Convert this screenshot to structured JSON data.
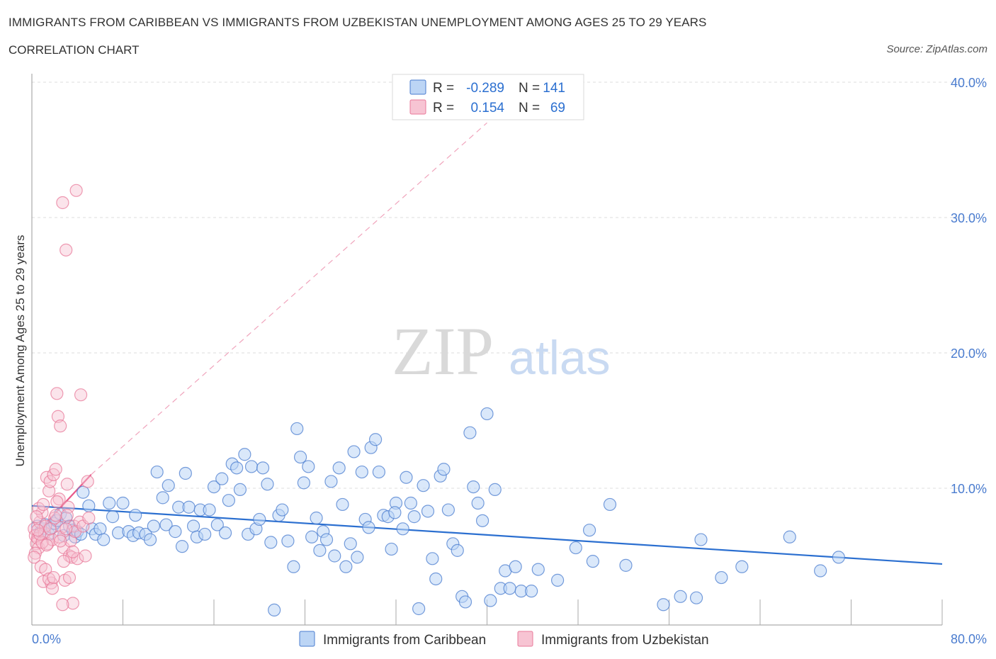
{
  "header": {
    "title": "IMMIGRANTS FROM CARIBBEAN VS IMMIGRANTS FROM UZBEKISTAN UNEMPLOYMENT AMONG AGES 25 TO 29 YEARS",
    "subtitle": "CORRELATION CHART",
    "source": "Source: ZipAtlas.com"
  },
  "watermark": {
    "zip": "ZIP",
    "atlas": "atlas"
  },
  "legend": {
    "rows": [
      {
        "r_label": "R =",
        "r_value": "-0.289",
        "n_label": "N =",
        "n_value": "141"
      },
      {
        "r_label": "R =",
        "r_value": "0.154",
        "n_label": "N =",
        "n_value": "69"
      }
    ]
  },
  "bottom_legend": [
    "Immigrants from Caribbean",
    "Immigrants from Uzbekistan"
  ],
  "colors": {
    "blue": "#4a7ccf",
    "blue_line": "#2b6fd0",
    "blue_fill": "#bcd5f5",
    "pink": "#e8799a",
    "pink_line": "#e85a8a",
    "pink_fill": "#f7c4d3",
    "grid": "#dddddd"
  },
  "chart_data": {
    "type": "scatter",
    "title": "IMMIGRANTS FROM CARIBBEAN VS IMMIGRANTS FROM UZBEKISTAN UNEMPLOYMENT AMONG AGES 25 TO 29 YEARS",
    "xlabel": "",
    "ylabel": "Unemployment Among Ages 25 to 29 years",
    "xlim": [
      0,
      80
    ],
    "ylim": [
      0,
      40
    ],
    "x_tick_labels": [
      "0.0%",
      "80.0%"
    ],
    "y_ticks": [
      10,
      20,
      30,
      40
    ],
    "y_tick_labels": [
      "10.0%",
      "20.0%",
      "30.0%",
      "40.0%"
    ],
    "series": [
      {
        "name": "Immigrants from Caribbean",
        "color": "#4a7ccf",
        "R": -0.289,
        "N": 141,
        "trend": {
          "x": [
            0,
            80
          ],
          "y": [
            8.7,
            4.4
          ]
        },
        "points": [
          [
            0.5,
            7.2
          ],
          [
            0.8,
            6.8
          ],
          [
            1.0,
            7.0
          ],
          [
            1.2,
            7.3
          ],
          [
            1.5,
            6.6
          ],
          [
            1.8,
            7.1
          ],
          [
            2.0,
            7.4
          ],
          [
            2.2,
            7.6
          ],
          [
            2.5,
            8.1
          ],
          [
            2.8,
            6.5
          ],
          [
            3.0,
            7.8
          ],
          [
            3.3,
            7.2
          ],
          [
            3.6,
            6.9
          ],
          [
            3.8,
            6.4
          ],
          [
            4.0,
            6.8
          ],
          [
            4.3,
            6.6
          ],
          [
            4.5,
            9.7
          ],
          [
            5.0,
            8.7
          ],
          [
            5.3,
            7.0
          ],
          [
            5.6,
            6.6
          ],
          [
            6.0,
            7.0
          ],
          [
            6.3,
            6.2
          ],
          [
            6.8,
            8.9
          ],
          [
            7.1,
            7.9
          ],
          [
            7.6,
            6.7
          ],
          [
            8.0,
            8.9
          ],
          [
            8.5,
            6.8
          ],
          [
            8.9,
            6.5
          ],
          [
            9.1,
            8.0
          ],
          [
            9.4,
            6.7
          ],
          [
            10.0,
            6.6
          ],
          [
            10.4,
            6.2
          ],
          [
            10.7,
            7.2
          ],
          [
            11.0,
            11.2
          ],
          [
            11.5,
            9.3
          ],
          [
            11.8,
            7.3
          ],
          [
            12.0,
            10.2
          ],
          [
            12.6,
            6.8
          ],
          [
            12.9,
            8.6
          ],
          [
            13.2,
            5.7
          ],
          [
            13.5,
            11.1
          ],
          [
            13.8,
            8.6
          ],
          [
            14.2,
            7.2
          ],
          [
            14.5,
            6.4
          ],
          [
            14.8,
            8.4
          ],
          [
            15.2,
            6.6
          ],
          [
            15.6,
            8.4
          ],
          [
            16.0,
            10.1
          ],
          [
            16.3,
            7.3
          ],
          [
            16.7,
            10.7
          ],
          [
            17.0,
            6.7
          ],
          [
            17.3,
            9.1
          ],
          [
            17.6,
            11.8
          ],
          [
            18.0,
            11.5
          ],
          [
            18.3,
            9.9
          ],
          [
            18.7,
            12.5
          ],
          [
            19.0,
            6.6
          ],
          [
            19.3,
            11.6
          ],
          [
            19.7,
            7.0
          ],
          [
            20.0,
            7.7
          ],
          [
            20.3,
            11.5
          ],
          [
            20.7,
            10.3
          ],
          [
            21.0,
            6.0
          ],
          [
            21.3,
            1.0
          ],
          [
            21.7,
            8.0
          ],
          [
            22.0,
            8.4
          ],
          [
            22.5,
            6.1
          ],
          [
            23.0,
            4.2
          ],
          [
            23.3,
            14.4
          ],
          [
            23.6,
            12.3
          ],
          [
            23.9,
            10.4
          ],
          [
            24.3,
            11.6
          ],
          [
            24.6,
            6.4
          ],
          [
            25.0,
            7.8
          ],
          [
            25.3,
            5.4
          ],
          [
            25.6,
            6.8
          ],
          [
            25.9,
            6.2
          ],
          [
            26.3,
            10.5
          ],
          [
            26.6,
            5.0
          ],
          [
            27.0,
            11.5
          ],
          [
            27.3,
            8.8
          ],
          [
            27.6,
            4.2
          ],
          [
            28.0,
            5.9
          ],
          [
            28.3,
            12.7
          ],
          [
            28.6,
            4.9
          ],
          [
            29.0,
            11.2
          ],
          [
            29.3,
            7.7
          ],
          [
            29.6,
            7.1
          ],
          [
            29.8,
            13.0
          ],
          [
            30.2,
            13.6
          ],
          [
            30.5,
            11.2
          ],
          [
            30.9,
            8.0
          ],
          [
            31.3,
            7.9
          ],
          [
            31.6,
            5.5
          ],
          [
            32.0,
            8.9
          ],
          [
            32.6,
            7.0
          ],
          [
            32.9,
            10.8
          ],
          [
            33.3,
            8.9
          ],
          [
            33.6,
            7.9
          ],
          [
            34.0,
            1.1
          ],
          [
            34.4,
            10.2
          ],
          [
            34.8,
            8.3
          ],
          [
            35.2,
            4.8
          ],
          [
            35.5,
            3.3
          ],
          [
            35.9,
            10.9
          ],
          [
            36.2,
            11.4
          ],
          [
            36.6,
            8.4
          ],
          [
            37.0,
            5.9
          ],
          [
            37.4,
            5.4
          ],
          [
            37.8,
            2.0
          ],
          [
            38.1,
            1.6
          ],
          [
            38.5,
            14.1
          ],
          [
            38.8,
            10.1
          ],
          [
            39.2,
            8.9
          ],
          [
            39.6,
            7.6
          ],
          [
            40.0,
            15.5
          ],
          [
            40.3,
            1.7
          ],
          [
            40.7,
            9.9
          ],
          [
            41.2,
            2.6
          ],
          [
            41.6,
            3.9
          ],
          [
            42.0,
            2.6
          ],
          [
            42.5,
            4.2
          ],
          [
            43.0,
            2.4
          ],
          [
            43.9,
            2.4
          ],
          [
            44.5,
            4.0
          ],
          [
            46.2,
            3.2
          ],
          [
            47.8,
            5.6
          ],
          [
            49.0,
            6.9
          ],
          [
            49.3,
            4.6
          ],
          [
            50.8,
            8.8
          ],
          [
            52.2,
            4.3
          ],
          [
            55.5,
            1.4
          ],
          [
            57.0,
            2.0
          ],
          [
            58.4,
            1.9
          ],
          [
            58.8,
            6.2
          ],
          [
            60.6,
            3.4
          ],
          [
            62.4,
            4.2
          ],
          [
            66.6,
            6.4
          ],
          [
            69.3,
            3.9
          ],
          [
            70.9,
            4.9
          ],
          [
            31.9,
            8.2
          ]
        ]
      },
      {
        "name": "Immigrants from Uzbekistan",
        "color": "#e8799a",
        "R": 0.154,
        "N": 69,
        "trend": {
          "x": [
            0,
            5.2
          ],
          "y": [
            6.3,
            11.0
          ]
        },
        "trend_ext": {
          "x": [
            5.2,
            40.0
          ],
          "y": [
            11.0,
            37.0
          ]
        },
        "points": [
          [
            0.2,
            7.0
          ],
          [
            0.3,
            6.5
          ],
          [
            0.4,
            5.9
          ],
          [
            0.5,
            6.3
          ],
          [
            0.6,
            5.6
          ],
          [
            0.7,
            7.5
          ],
          [
            0.8,
            4.2
          ],
          [
            0.9,
            8.2
          ],
          [
            1.0,
            3.1
          ],
          [
            1.1,
            6.7
          ],
          [
            1.2,
            7.2
          ],
          [
            1.3,
            10.8
          ],
          [
            1.4,
            5.9
          ],
          [
            1.5,
            9.8
          ],
          [
            1.6,
            10.5
          ],
          [
            1.7,
            3.0
          ],
          [
            1.8,
            6.2
          ],
          [
            1.9,
            11.0
          ],
          [
            2.0,
            7.8
          ],
          [
            2.1,
            11.4
          ],
          [
            2.2,
            17.0
          ],
          [
            2.3,
            15.3
          ],
          [
            2.4,
            9.2
          ],
          [
            2.5,
            14.6
          ],
          [
            2.6,
            7.1
          ],
          [
            2.7,
            31.1
          ],
          [
            2.8,
            5.6
          ],
          [
            2.9,
            3.2
          ],
          [
            3.0,
            27.6
          ],
          [
            3.1,
            10.3
          ],
          [
            3.2,
            8.6
          ],
          [
            3.3,
            5.0
          ],
          [
            3.4,
            6.1
          ],
          [
            3.5,
            4.9
          ],
          [
            3.6,
            1.5
          ],
          [
            3.7,
            7.2
          ],
          [
            3.8,
            6.8
          ],
          [
            3.9,
            32.0
          ],
          [
            4.0,
            4.8
          ],
          [
            4.2,
            7.5
          ],
          [
            4.3,
            16.9
          ],
          [
            4.5,
            7.2
          ],
          [
            4.7,
            5.0
          ],
          [
            4.9,
            10.5
          ],
          [
            5.0,
            7.8
          ],
          [
            0.3,
            5.2
          ],
          [
            0.6,
            8.5
          ],
          [
            0.9,
            6.0
          ],
          [
            1.2,
            4.0
          ],
          [
            1.5,
            3.3
          ],
          [
            1.8,
            2.6
          ],
          [
            2.1,
            8.0
          ],
          [
            2.4,
            6.4
          ],
          [
            2.7,
            1.4
          ],
          [
            3.0,
            7.0
          ],
          [
            3.3,
            3.4
          ],
          [
            3.6,
            5.3
          ],
          [
            0.4,
            7.9
          ],
          [
            0.7,
            6.6
          ],
          [
            1.0,
            8.8
          ],
          [
            1.3,
            5.8
          ],
          [
            1.6,
            7.0
          ],
          [
            1.9,
            3.4
          ],
          [
            2.2,
            9.0
          ],
          [
            2.5,
            6.1
          ],
          [
            2.8,
            4.6
          ],
          [
            3.1,
            8.0
          ],
          [
            0.2,
            4.9
          ],
          [
            0.5,
            6.9
          ]
        ]
      }
    ]
  }
}
